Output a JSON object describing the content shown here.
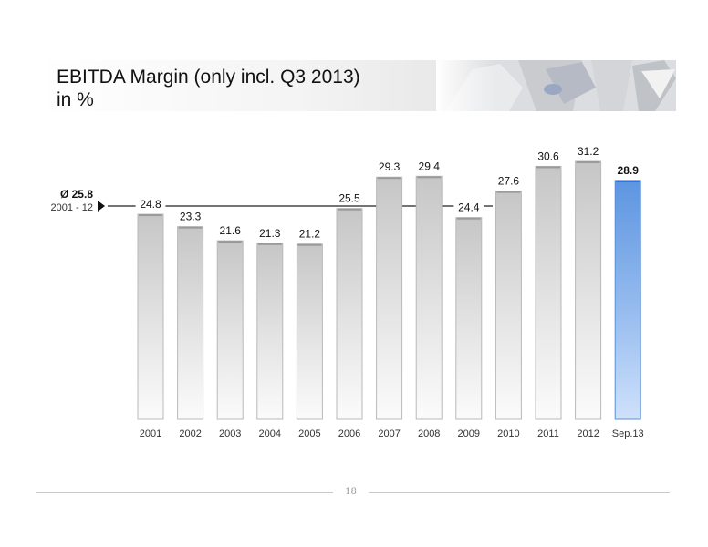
{
  "title": {
    "line1": "EBITDA Margin (only incl. Q3 2013)",
    "line2": "in %"
  },
  "average": {
    "label": "Ø 25.8",
    "value": 25.8,
    "period": "2001 - 12"
  },
  "chart_data": {
    "type": "bar",
    "title": "EBITDA Margin (only incl. Q3 2013)",
    "ylabel": "in %",
    "xlabel": "",
    "categories": [
      "2001",
      "2002",
      "2003",
      "2004",
      "2005",
      "2006",
      "2007",
      "2008",
      "2009",
      "2010",
      "2011",
      "2012",
      "Sep.13"
    ],
    "values": [
      24.8,
      23.3,
      21.6,
      21.3,
      21.2,
      25.5,
      29.3,
      29.4,
      24.4,
      27.6,
      30.6,
      31.2,
      28.9
    ],
    "value_labels": [
      "24.8",
      "23.3",
      "21.6",
      "21.3",
      "21.2",
      "25.5",
      "29.3",
      "29.4",
      "24.4",
      "27.6",
      "30.6",
      "31.2",
      "28.9"
    ],
    "ylim": [
      0,
      31.2
    ],
    "grid": false,
    "legend": "none",
    "colors": {
      "historic_bar": "#d8d8d8",
      "highlight_bar": "#6a9fe3",
      "average_line": "#222222"
    }
  },
  "footer": {
    "page_number": "18"
  }
}
